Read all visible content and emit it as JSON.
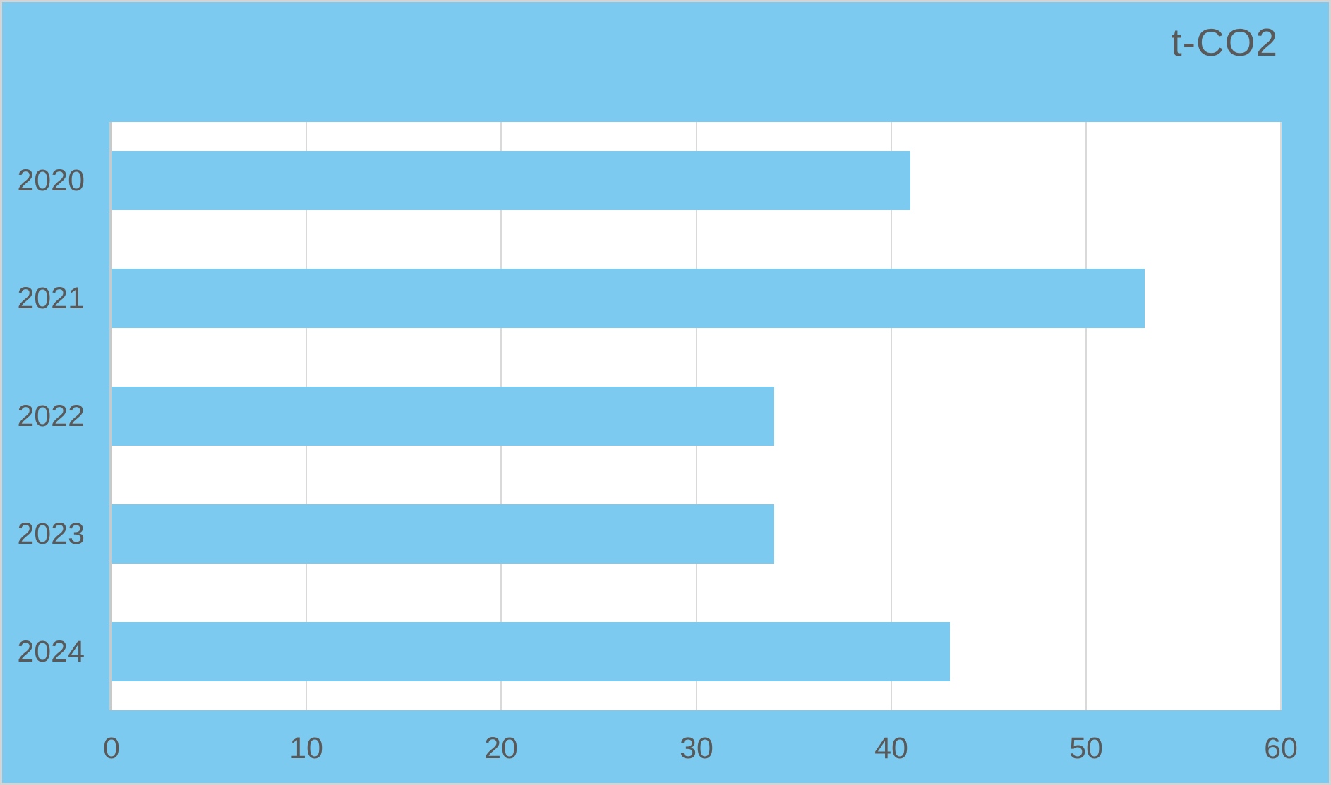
{
  "title": "t-CO2",
  "colors": {
    "background": "#7dcaf0",
    "bar_fill": "#7dcaf0",
    "plot_background": "#ffffff",
    "gridline": "#d9d9d9",
    "axis_line": "#c9c9c9",
    "text": "#595959",
    "frame_border": "#d4d4d4"
  },
  "chart_data": {
    "type": "bar",
    "orientation": "horizontal",
    "title": "t-CO2",
    "unit_label": "t-CO2",
    "categories": [
      "2020",
      "2021",
      "2022",
      "2023",
      "2024"
    ],
    "values": [
      41,
      53,
      34,
      34,
      43
    ],
    "xlabel": "",
    "ylabel": "",
    "xlim": [
      0,
      60
    ],
    "xticks": [
      0,
      10,
      20,
      30,
      40,
      50,
      60
    ],
    "grid": true,
    "legend": "none"
  }
}
